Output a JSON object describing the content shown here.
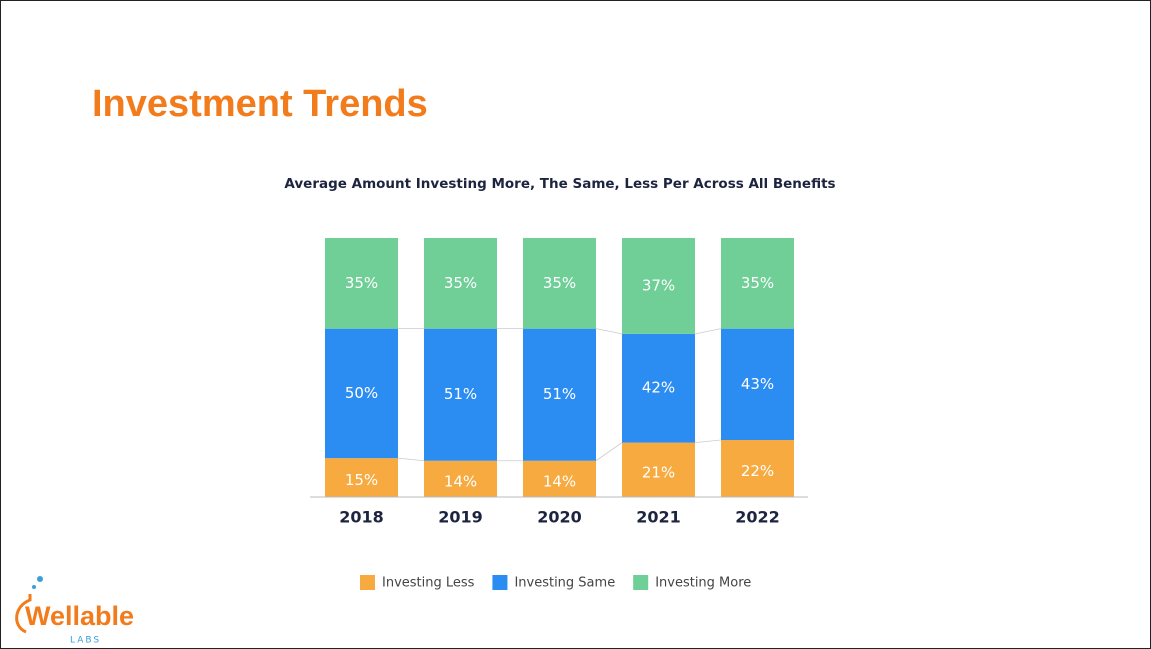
{
  "page_title": "Investment Trends",
  "chart_data": {
    "type": "stacked-bar",
    "title": "Average Amount Investing More, The Same, Less Per Across All Benefits",
    "categories": [
      "2018",
      "2019",
      "2020",
      "2021",
      "2022"
    ],
    "series": [
      {
        "name": "Investing Less",
        "color": "#f6aa3f",
        "values": [
          15,
          14,
          14,
          21,
          22
        ],
        "value_labels": [
          "15%",
          "14%",
          "14%",
          "21%",
          "22%"
        ]
      },
      {
        "name": "Investing Same",
        "color": "#2b8cf2",
        "values": [
          50,
          51,
          51,
          42,
          43
        ],
        "value_labels": [
          "50%",
          "51%",
          "51%",
          "42%",
          "43%"
        ]
      },
      {
        "name": "Investing More",
        "color": "#6fcf97",
        "values": [
          35,
          35,
          35,
          37,
          35
        ],
        "value_labels": [
          "35%",
          "35%",
          "35%",
          "37%",
          "35%"
        ]
      }
    ],
    "ylim": [
      0,
      100
    ],
    "legend": "bottom"
  },
  "logo": {
    "name": "Wellable",
    "sub": "LABS"
  }
}
